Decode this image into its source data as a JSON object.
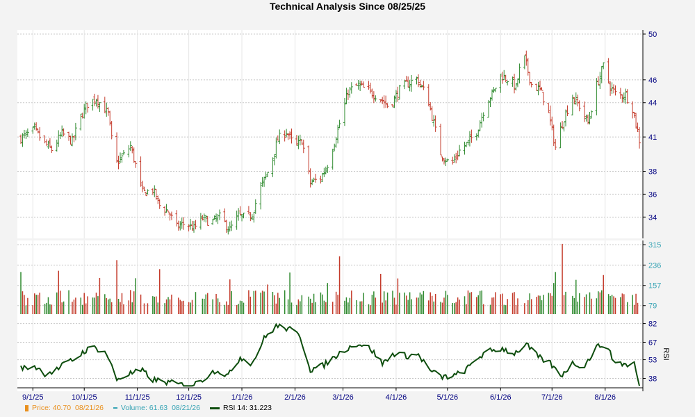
{
  "title": "Technical Analysis Since 08/25/25",
  "colors": {
    "up": "#2f8a2f",
    "down": "#c43a2a",
    "rsi_line": "#0d4d0d",
    "grid": "#c8c8c8",
    "axis_text": "#000080",
    "volume_axis_text": "#36a3b4",
    "price_legend": "#e98f1c"
  },
  "legend": {
    "price_label": "Price: 40.70",
    "price_date": "08/21/26",
    "volume_label": "Volume: 61.63",
    "volume_date": "08/21/26",
    "rsi_label": "RSI 14: 31.223"
  },
  "chart_data": [
    {
      "type": "candlestick",
      "panel": "price",
      "title": "Technical Analysis Since 08/25/25",
      "ylim": [
        32.5,
        50
      ],
      "yticks": [
        "50",
        "46",
        "44",
        "41",
        "38",
        "36",
        "34"
      ],
      "ytick_values": [
        50,
        46,
        44,
        41,
        38,
        36,
        34
      ],
      "x_tick_labels": [
        "9/1/25",
        "10/1/25",
        "11/1/25",
        "12/1/25",
        "1/1/26",
        "2/1/26",
        "3/1/26",
        "4/1/26",
        "5/1/26",
        "6/1/26",
        "7/1/26",
        "8/1/26"
      ],
      "x_tick_dates": [
        "2025-09-01",
        "2025-10-01",
        "2025-11-01",
        "2025-12-01",
        "2026-01-01",
        "2026-02-01",
        "2026-03-01",
        "2026-04-01",
        "2026-05-01",
        "2026-06-01",
        "2026-07-01",
        "2026-08-01"
      ],
      "x_range": [
        "2025-08-25",
        "2026-08-21"
      ],
      "close_path": [
        [
          "2025-08-25",
          40.9
        ],
        [
          "2025-09-02",
          41.6
        ],
        [
          "2025-09-08",
          40.4
        ],
        [
          "2025-09-12",
          39.9
        ],
        [
          "2025-09-18",
          41.3
        ],
        [
          "2025-09-24",
          40.6
        ],
        [
          "2025-09-29",
          42.8
        ],
        [
          "2025-10-03",
          43.9
        ],
        [
          "2025-10-08",
          44.4
        ],
        [
          "2025-10-12",
          43.6
        ],
        [
          "2025-10-15",
          43.0
        ],
        [
          "2025-10-19",
          38.6
        ],
        [
          "2025-10-24",
          39.4
        ],
        [
          "2025-10-28",
          40.2
        ],
        [
          "2025-11-01",
          38.0
        ],
        [
          "2025-11-04",
          36.1
        ],
        [
          "2025-11-10",
          36.4
        ],
        [
          "2025-11-14",
          35.0
        ],
        [
          "2025-11-19",
          34.5
        ],
        [
          "2025-11-24",
          33.1
        ],
        [
          "2025-11-29",
          33.5
        ],
        [
          "2025-12-04",
          33.0
        ],
        [
          "2025-12-09",
          33.9
        ],
        [
          "2025-12-14",
          33.5
        ],
        [
          "2025-12-19",
          34.0
        ],
        [
          "2025-12-25",
          32.9
        ],
        [
          "2025-12-30",
          34.1
        ],
        [
          "2026-01-04",
          33.9
        ],
        [
          "2026-01-07",
          34.3
        ],
        [
          "2026-01-12",
          36.6
        ],
        [
          "2026-01-17",
          38.2
        ],
        [
          "2026-01-22",
          40.8
        ],
        [
          "2026-01-27",
          41.5
        ],
        [
          "2026-02-01",
          40.1
        ],
        [
          "2026-02-05",
          40.7
        ],
        [
          "2026-02-10",
          37.0
        ],
        [
          "2026-02-16",
          37.4
        ],
        [
          "2026-02-20",
          38.6
        ],
        [
          "2026-02-26",
          41.6
        ],
        [
          "2026-03-04",
          45.0
        ],
        [
          "2026-03-10",
          45.5
        ],
        [
          "2026-03-16",
          45.0
        ],
        [
          "2026-03-22",
          44.5
        ],
        [
          "2026-03-28",
          43.6
        ],
        [
          "2026-04-03",
          45.1
        ],
        [
          "2026-04-07",
          45.6
        ],
        [
          "2026-04-13",
          46.1
        ],
        [
          "2026-04-19",
          44.6
        ],
        [
          "2026-04-23",
          42.2
        ],
        [
          "2026-04-27",
          39.6
        ],
        [
          "2026-05-03",
          38.5
        ],
        [
          "2026-05-08",
          39.8
        ],
        [
          "2026-05-13",
          40.5
        ],
        [
          "2026-05-18",
          41.5
        ],
        [
          "2026-05-24",
          44.1
        ],
        [
          "2026-05-28",
          45.0
        ],
        [
          "2026-06-01",
          46.4
        ],
        [
          "2026-06-06",
          46.0
        ],
        [
          "2026-06-10",
          45.3
        ],
        [
          "2026-06-14",
          48.4
        ],
        [
          "2026-06-19",
          45.6
        ],
        [
          "2026-06-24",
          45.1
        ],
        [
          "2026-06-28",
          43.7
        ],
        [
          "2026-07-03",
          40.1
        ],
        [
          "2026-07-08",
          42.7
        ],
        [
          "2026-07-13",
          44.5
        ],
        [
          "2026-07-18",
          43.5
        ],
        [
          "2026-07-22",
          42.2
        ],
        [
          "2026-07-27",
          45.5
        ],
        [
          "2026-07-31",
          47.2
        ],
        [
          "2026-08-04",
          45.4
        ],
        [
          "2026-08-08",
          44.6
        ],
        [
          "2026-08-13",
          44.7
        ],
        [
          "2026-08-17",
          43.5
        ],
        [
          "2026-08-21",
          40.7
        ]
      ]
    },
    {
      "type": "bar",
      "panel": "volume",
      "ylim": [
        46,
        315
      ],
      "yticks": [
        "315",
        "236",
        "157",
        "79"
      ],
      "ytick_values": [
        315,
        236,
        157,
        79
      ],
      "spikes": [
        [
          "2025-10-20",
          255
        ],
        [
          "2025-10-31",
          185
        ],
        [
          "2025-11-14",
          220
        ],
        [
          "2026-01-07",
          200
        ],
        [
          "2026-02-27",
          270
        ],
        [
          "2026-07-02",
          225
        ],
        [
          "2026-07-07",
          318
        ],
        [
          "2026-07-15",
          200
        ]
      ],
      "typical_range": [
        80,
        140
      ]
    },
    {
      "type": "line",
      "panel": "rsi",
      "ylabel": "RSI",
      "ylim": [
        31,
        84
      ],
      "yticks": [
        "82",
        "67",
        "53",
        "38"
      ],
      "ytick_values": [
        82,
        67,
        53,
        38
      ],
      "series": [
        {
          "name": "RSI 14",
          "points": [
            [
              "2025-08-25",
              46
            ],
            [
              "2025-09-02",
              48
            ],
            [
              "2025-09-08",
              42
            ],
            [
              "2025-09-14",
              44
            ],
            [
              "2025-09-20",
              50
            ],
            [
              "2025-09-26",
              54
            ],
            [
              "2025-10-01",
              60
            ],
            [
              "2025-10-07",
              63
            ],
            [
              "2025-10-14",
              58
            ],
            [
              "2025-10-20",
              37
            ],
            [
              "2025-10-28",
              42
            ],
            [
              "2025-11-04",
              44
            ],
            [
              "2025-11-10",
              37
            ],
            [
              "2025-11-18",
              35
            ],
            [
              "2025-11-26",
              33
            ],
            [
              "2025-12-03",
              32
            ],
            [
              "2025-12-10",
              38
            ],
            [
              "2025-12-17",
              45
            ],
            [
              "2025-12-24",
              40
            ],
            [
              "2025-12-31",
              55
            ],
            [
              "2026-01-07",
              50
            ],
            [
              "2026-01-14",
              70
            ],
            [
              "2026-01-21",
              80
            ],
            [
              "2026-01-28",
              78
            ],
            [
              "2026-02-04",
              72
            ],
            [
              "2026-02-10",
              45
            ],
            [
              "2026-02-17",
              48
            ],
            [
              "2026-02-24",
              55
            ],
            [
              "2026-03-03",
              62
            ],
            [
              "2026-03-10",
              66
            ],
            [
              "2026-03-17",
              62
            ],
            [
              "2026-03-24",
              50
            ],
            [
              "2026-03-31",
              58
            ],
            [
              "2026-04-07",
              56
            ],
            [
              "2026-04-14",
              57
            ],
            [
              "2026-04-21",
              44
            ],
            [
              "2026-04-28",
              39
            ],
            [
              "2026-05-05",
              40
            ],
            [
              "2026-05-12",
              45
            ],
            [
              "2026-05-19",
              55
            ],
            [
              "2026-05-26",
              60
            ],
            [
              "2026-06-02",
              62
            ],
            [
              "2026-06-09",
              58
            ],
            [
              "2026-06-16",
              65
            ],
            [
              "2026-06-23",
              55
            ],
            [
              "2026-06-30",
              50
            ],
            [
              "2026-07-06",
              40
            ],
            [
              "2026-07-13",
              50
            ],
            [
              "2026-07-20",
              48
            ],
            [
              "2026-07-27",
              63
            ],
            [
              "2026-08-01",
              66
            ],
            [
              "2026-08-06",
              52
            ],
            [
              "2026-08-13",
              49
            ],
            [
              "2026-08-18",
              50
            ],
            [
              "2026-08-21",
              31.223
            ]
          ]
        }
      ]
    }
  ]
}
